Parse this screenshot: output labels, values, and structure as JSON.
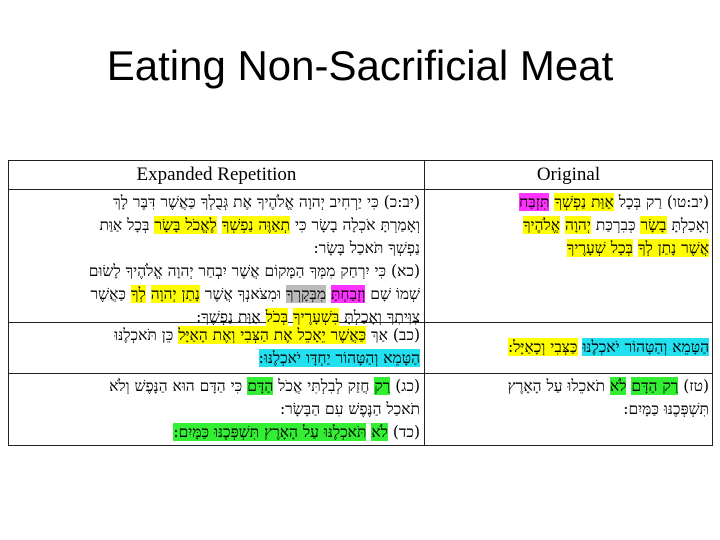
{
  "title": "Eating Non-Sacrificial Meat",
  "table": {
    "header_left": "Expanded Repetition",
    "header_right": "Original",
    "rows": [
      {
        "left": [
          [
            {
              "t": "(יב:כ) כִּי יַרְחִיב יְהוָה אֱלֹהֶיךָ אֶת גְּבֻלְךָ כַּאֲשֶׁר דִּבֶּר לָךְ"
            }
          ],
          [
            {
              "t": "וְאָמַרְתָּ אֹכְלָה בָשָׂר כִּי "
            },
            {
              "t": "תְאַוֶּה נַפְשְׁךָ",
              "hl": "yellow"
            },
            {
              "t": " "
            },
            {
              "t": "לֶאֱכֹל בָּשָׂר",
              "hl": "yellow"
            },
            {
              "t": " בְּכָל אַוַּת"
            }
          ],
          [
            {
              "t": "נַפְשְׁךָ תֹּאכַל בָּשָׂר:"
            }
          ],
          [
            {
              "t": "(כא) כִּי יִרְחַק מִמְּךָ הַמָּקוֹם אֲשֶׁר יִבְחַר יְהוָה אֱלֹהֶיךָ לָשׂוּם"
            }
          ],
          [
            {
              "t": "שְׁמוֹ שָׁם "
            },
            {
              "t": "וְזָבַחְתָּ",
              "hl": "magenta"
            },
            {
              "t": " "
            },
            {
              "t": "מִבְּקָרְךָ",
              "hl": "gray"
            },
            {
              "t": " וּמִצֹּאנְךָ אֲשֶׁר "
            },
            {
              "t": "נָתַן יְהוָה",
              "hl": "yellow"
            },
            {
              "t": " "
            },
            {
              "t": "לְךָ",
              "hl": "yellow"
            },
            {
              "t": " כַּאֲשֶׁר"
            }
          ],
          [
            {
              "t": "צִוִּיתִךָ וְאָכַלְתָּ "
            },
            {
              "t": "בִּשְׁעָרֶיךָ",
              "hl": "yellow"
            },
            {
              "t": " "
            },
            {
              "t": "בְּכֹל",
              "hl": "yellow"
            },
            {
              "t": " אַוַּת נַפְשֶׁךָ:"
            }
          ]
        ],
        "right": [
          [
            {
              "t": "(יב:טו) רַק בְּכָל "
            },
            {
              "t": "אַוַּת נַפְשְׁךָ",
              "hl": "yellow"
            },
            {
              "t": " "
            },
            {
              "t": "תִּזְבַּח",
              "hl": "magenta"
            }
          ],
          [
            {
              "t": "וְאָכַלְתָּ "
            },
            {
              "t": "בָשָׂר",
              "hl": "yellow"
            },
            {
              "t": " כְּבִרְכַּת "
            },
            {
              "t": "יְהוָה",
              "hl": "yellow"
            },
            {
              "t": " "
            },
            {
              "t": "אֱלֹהֶיךָ",
              "hl": "yellow"
            }
          ],
          [
            {
              "t": "אֲשֶׁר נָתַן לְךָ",
              "hl": "yellow"
            },
            {
              "t": " "
            },
            {
              "t": "בְּכָל שְׁעָרֶיךָ",
              "hl": "yellow"
            }
          ]
        ]
      },
      {
        "left": [
          [
            {
              "t": "(כב) אַךְ "
            },
            {
              "t": "כַּאֲשֶׁר יֵאָכֵל אֶת הַצְּבִי וְאֶת הָאַיָּל",
              "hl": "yellow"
            },
            {
              "t": " כֵּן תֹּאכְלֶנּוּ"
            }
          ],
          [
            {
              "t": "הַטָּמֵא וְהַטָּהוֹר יַחְדָּו יֹאכְלֶנּוּ:",
              "hl": "cyan"
            }
          ]
        ],
        "right": [
          [
            {
              "t": "הַטָּמֵא וְהַטָּהוֹר יֹאכְלֶנּוּ",
              "hl": "cyan"
            },
            {
              "t": " "
            },
            {
              "t": "כַּצְּבִי וְכָאַיָּל:",
              "hl": "yellow"
            }
          ]
        ]
      },
      {
        "left": [
          [
            {
              "t": "(כג) "
            },
            {
              "t": "רַק",
              "hl": "green"
            },
            {
              "t": " חֲזַק לְבִלְתִּי אֲכֹל "
            },
            {
              "t": "הַדָּם",
              "hl": "green"
            },
            {
              "t": " כִּי הַדָּם הוּא הַנָּפֶשׁ וְלֹא"
            }
          ],
          [
            {
              "t": "תֹאכַל הַנֶּפֶשׁ עִם הַבָּשָׂר:"
            }
          ],
          [
            {
              "t": "(כד) "
            },
            {
              "t": "לֹא",
              "hl": "green"
            },
            {
              "t": " "
            },
            {
              "t": "תֹּאכְלֶנּוּ עַל הָאָרֶץ תִּשְׁפְּכֶנּוּ כַּמָּיִם:",
              "hl": "green"
            }
          ]
        ],
        "right": [
          [
            {
              "t": "(טז) "
            },
            {
              "t": "רַק הַדָּם",
              "hl": "green"
            },
            {
              "t": " "
            },
            {
              "t": "לֹא",
              "hl": "green"
            },
            {
              "t": " תֹאכֵלוּ עַל הָאָרֶץ"
            }
          ],
          [
            {
              "t": "תִּשְׁפְּכֶנּוּ כַּמָּיִם:"
            }
          ]
        ]
      }
    ]
  }
}
